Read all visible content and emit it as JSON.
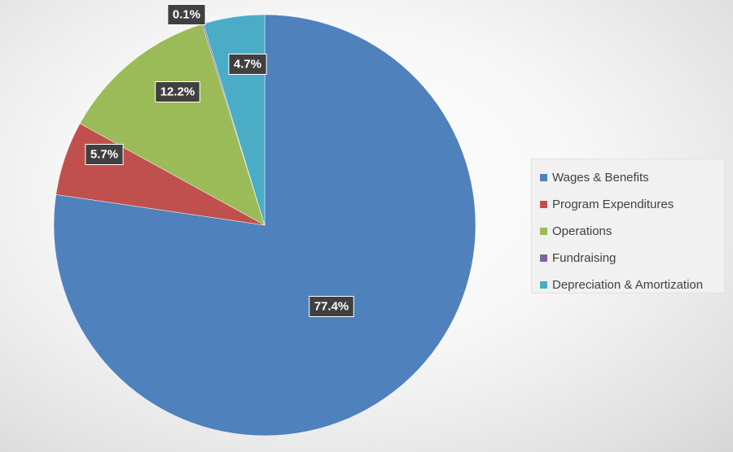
{
  "chart_data": {
    "type": "pie",
    "title": "",
    "legend_position": "right",
    "categories": [
      "Wages & Benefits",
      "Program Expenditures",
      "Operations",
      "Fundraising",
      "Depreciation & Amortization"
    ],
    "values": [
      77.4,
      5.7,
      12.2,
      0.1,
      4.7
    ],
    "labels": [
      "77.4%",
      "5.7%",
      "12.2%",
      "0.1%",
      "4.7%"
    ],
    "colors": [
      "#4F81BD",
      "#C0504D",
      "#9BBB59",
      "#8064A2",
      "#4BACC6"
    ]
  }
}
